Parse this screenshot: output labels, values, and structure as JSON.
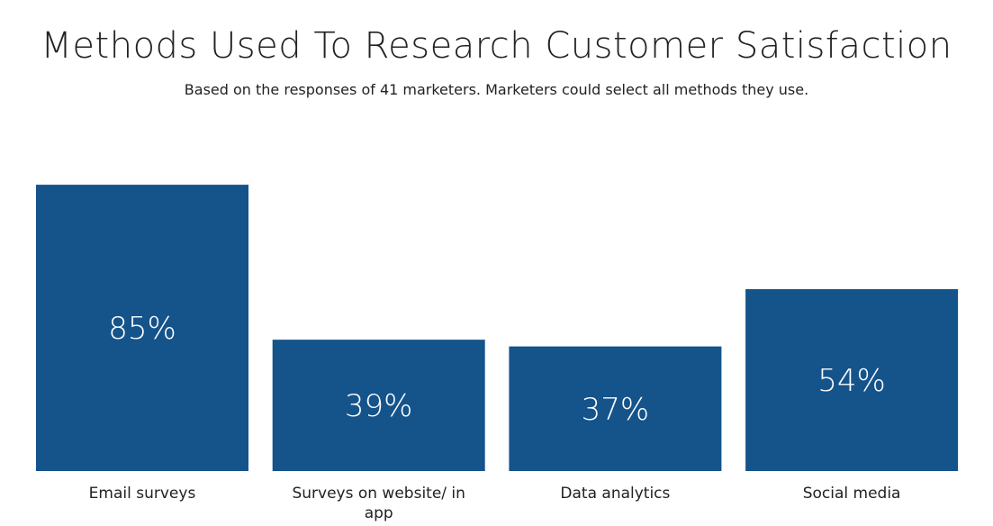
{
  "chart_data": {
    "type": "bar",
    "title": "Methods Used To Research Customer Satisfaction",
    "subtitle": "Based on the responses of 41 marketers. Marketers could select all methods they use.",
    "categories": [
      "Email surveys",
      "Surveys on website/ in app",
      "Data analytics",
      "Social media"
    ],
    "category_lines": [
      [
        "Email surveys"
      ],
      [
        "Surveys on website/ in",
        "app"
      ],
      [
        "Data analytics"
      ],
      [
        "Social media"
      ]
    ],
    "values": [
      85,
      39,
      37,
      54
    ],
    "data_labels": [
      "85%",
      "39%",
      "37%",
      "54%"
    ],
    "unit": "%",
    "xlabel": "",
    "ylabel": "",
    "ylim": [
      0,
      100
    ],
    "grid": false,
    "legend": "none",
    "bar_color": "#15538b"
  }
}
